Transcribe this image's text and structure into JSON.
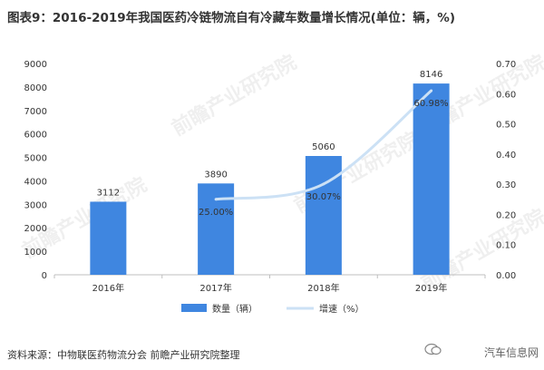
{
  "title": "图表9：2016-2019年我国医药冷链物流自有冷藏车数量增长情况(单位：辆，%)",
  "source": "资料来源：中物联医药物流分会 前瞻产业研究院整理",
  "watermark": "汽车信息网",
  "logo_text": "前瞻产业研究院",
  "colors": {
    "bar": "#3f86e0",
    "line": "#cce1f5",
    "axis": "#bfbfbf"
  },
  "chart_data": {
    "type": "bar",
    "categories": [
      "2016年",
      "2017年",
      "2018年",
      "2019年"
    ],
    "series": [
      {
        "name": "数量（辆）",
        "type": "bar",
        "axis": "left",
        "values": [
          3112,
          3890,
          5060,
          8146
        ],
        "labels": [
          "3112",
          "3890",
          "5060",
          "8146"
        ]
      },
      {
        "name": "增速（%）",
        "type": "line",
        "axis": "right",
        "values": [
          null,
          0.25,
          0.3007,
          0.6098
        ],
        "labels": [
          "",
          "25.00%",
          "30.07%",
          "60.98%"
        ]
      }
    ],
    "y_left": {
      "min": 0,
      "max": 9000,
      "ticks": [
        "0",
        "1000",
        "2000",
        "3000",
        "4000",
        "5000",
        "6000",
        "7000",
        "8000",
        "9000"
      ]
    },
    "y_right": {
      "min": 0,
      "max": 0.7,
      "ticks": [
        "0.00",
        "0.10",
        "0.20",
        "0.30",
        "0.40",
        "0.50",
        "0.60",
        "0.70"
      ]
    },
    "legend": "bottom-center",
    "grid": false
  }
}
